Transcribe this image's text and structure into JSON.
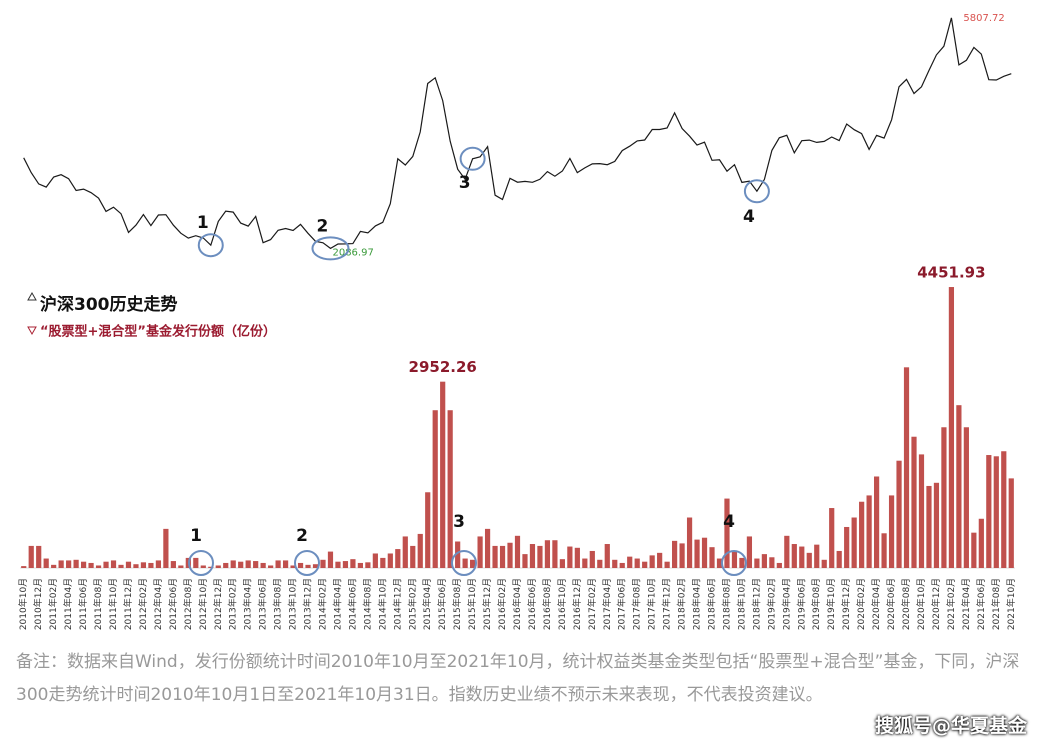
{
  "chart_data": {
    "type": "bar",
    "legend": [
      "沪深300历史走势",
      "“股票型+混合型”基金发行份额（亿份）"
    ],
    "annotations": [
      "1",
      "2",
      "3",
      "4"
    ],
    "note": "备注：数据来自Wind，发行份额统计时间2010年10月至2021年10月，统计权益类基金类型包括“股票型+混合型”基金，下同，沪深300走势统计时间2010年10月1日至2021年10月31日。指数历史业绩不预示未来表现，不代表投资建议。",
    "watermark": "搜狐号@华夏基金",
    "categories": [
      "2010年10月",
      null,
      "2010年12月",
      null,
      "2011年02月",
      null,
      "2011年04月",
      null,
      "2011年06月",
      null,
      "2011年08月",
      null,
      "2011年10月",
      null,
      "2011年12月",
      null,
      "2012年02月",
      null,
      "2012年04月",
      null,
      "2012年06月",
      null,
      "2012年08月",
      null,
      "2012年10月",
      null,
      "2012年12月",
      null,
      "2013年02月",
      null,
      "2013年04月",
      null,
      "2013年06月",
      null,
      "2013年08月",
      null,
      "2013年10月",
      null,
      "2013年12月",
      null,
      "2014年02月",
      null,
      "2014年04月",
      null,
      "2014年06月",
      null,
      "2014年08月",
      null,
      "2014年10月",
      null,
      "2014年12月",
      null,
      "2015年02月",
      null,
      "2015年04月",
      null,
      "2015年06月",
      null,
      "2015年08月",
      null,
      "2015年10月",
      null,
      "2015年12月",
      null,
      "2016年02月",
      null,
      "2016年04月",
      null,
      "2016年06月",
      null,
      "2016年08月",
      null,
      "2016年10月",
      null,
      "2016年12月",
      null,
      "2017年02月",
      null,
      "2017年04月",
      null,
      "2017年06月",
      null,
      "2017年08月",
      null,
      "2017年10月",
      null,
      "2017年12月",
      null,
      "2018年02月",
      null,
      "2018年04月",
      null,
      "2018年06月",
      null,
      "2018年08月",
      null,
      "2018年10月",
      null,
      "2018年12月",
      null,
      "2019年02月",
      null,
      "2019年04月",
      null,
      "2019年06月",
      null,
      "2019年08月",
      null,
      "2019年10月",
      null,
      "2019年12月",
      null,
      "2020年02月",
      null,
      "2020年04月",
      null,
      "2020年06月",
      null,
      "2020年08月",
      null,
      "2020年10月",
      null,
      "2020年12月",
      null,
      "2021年02月",
      null,
      "2021年04月",
      null,
      "2021年06月",
      null,
      "2021年08月",
      null,
      "2021年10月"
    ],
    "series": [
      {
        "name": "沪深300历史走势",
        "type": "line",
        "axis": "y2",
        "color": "#1a1a1a",
        "values": [
          3550,
          3310,
          3128,
          3077,
          3239,
          3277,
          3212,
          3022,
          3044,
          2986,
          2897,
          2685,
          2753,
          2647,
          2346,
          2464,
          2634,
          2455,
          2626,
          2631,
          2462,
          2333,
          2254,
          2293,
          2255,
          2139,
          2523,
          2688,
          2673,
          2495,
          2448,
          2603,
          2180,
          2230,
          2380,
          2409,
          2376,
          2474,
          2331,
          2202,
          2178,
          2086.97,
          2158,
          2160,
          2165,
          2362,
          2338,
          2450,
          2508,
          2808,
          3533,
          3434,
          3572,
          3966,
          4749,
          4841,
          4473,
          3816,
          3366,
          3202,
          3534,
          3566,
          3731,
          2946,
          2877,
          3218,
          3156,
          3169,
          3154,
          3203,
          3327,
          3253,
          3336,
          3538,
          3310,
          3387,
          3452,
          3456,
          3439,
          3492,
          3666,
          3737,
          3822,
          3837,
          4006,
          4006,
          4030,
          4275,
          4023,
          3898,
          3756,
          3802,
          3510,
          3517,
          3334,
          3438,
          3153,
          3172,
          3010,
          3201,
          3669,
          3872,
          3913,
          3630,
          3825,
          3835,
          3799,
          3814,
          3886,
          3828,
          4096,
          4003,
          3940,
          3686,
          3912,
          3867,
          4163,
          4695,
          4816,
          4587,
          4695,
          4960,
          5211,
          5351,
          5807.72,
          5049,
          5123,
          5331,
          5224,
          4811,
          4805,
          4866,
          4908
        ]
      },
      {
        "name": "“股票型+混合型”基金发行份额（亿份）",
        "type": "bar",
        "color": "#c0504d",
        "values": [
          30,
          350,
          350,
          150,
          50,
          120,
          120,
          130,
          100,
          80,
          40,
          100,
          120,
          50,
          100,
          60,
          90,
          80,
          120,
          620,
          110,
          40,
          160,
          160,
          40,
          20,
          40,
          80,
          120,
          100,
          120,
          110,
          80,
          40,
          120,
          120,
          40,
          80,
          50,
          60,
          130,
          260,
          100,
          110,
          140,
          80,
          90,
          230,
          160,
          230,
          300,
          500,
          350,
          540,
          1200,
          2500,
          2952.26,
          2500,
          420,
          150,
          130,
          500,
          620,
          350,
          350,
          400,
          510,
          220,
          380,
          350,
          440,
          440,
          140,
          340,
          320,
          150,
          270,
          130,
          380,
          130,
          80,
          180,
          150,
          100,
          200,
          240,
          100,
          430,
          390,
          800,
          450,
          480,
          330,
          150,
          1100,
          260,
          160,
          500,
          150,
          220,
          170,
          80,
          510,
          380,
          340,
          240,
          370,
          130,
          950,
          270,
          650,
          800,
          1050,
          1150,
          1450,
          550,
          1150,
          1700,
          3180,
          2080,
          1800,
          1300,
          1350,
          2230,
          4451.93,
          2580,
          2230,
          560,
          780,
          1790,
          1770,
          1850,
          1420
        ]
      }
    ],
    "ylim": [
      0,
      4500
    ],
    "y2lim": [
      1900,
      6000
    ],
    "grid": false
  }
}
